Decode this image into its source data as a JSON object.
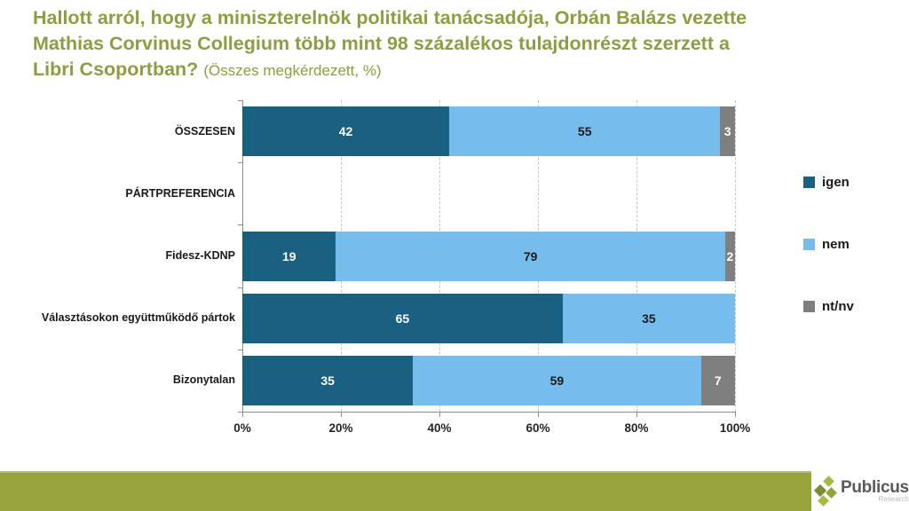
{
  "title": {
    "lines": [
      "Hallott arról, hogy a miniszterelnök politikai tanácsadója, Orbán Balázs vezette",
      "Mathias Corvinus Collegium több mint 98 százalékos tulajdonrészt szerzett a",
      "Libri Csoportban?"
    ],
    "suffix": "(Összes megkérdezett, %)",
    "color": "#8e9d41"
  },
  "chart_data": {
    "type": "bar",
    "orientation": "horizontal-stacked",
    "title": "Hallott arról, hogy a miniszterelnök politikai tanácsadója, Orbán Balázs vezette Mathias Corvinus Collegium több mint 98 százalékos tulajdonrészt szerzett a Libri Csoportban? (Összes megkérdezett, %)",
    "categories": [
      "ÖSSZESEN",
      "PÁRTPREFERENCIA",
      "Fidesz-KDNP",
      "Választásokon együttműködő pártok",
      "Bizonytalan"
    ],
    "series": [
      {
        "name": "igen",
        "color": "#1a6181",
        "label_color": "#ffffff",
        "values": [
          42,
          null,
          19,
          65,
          35
        ]
      },
      {
        "name": "nem",
        "color": "#76bdee",
        "label_color": "#1a1a1a",
        "values": [
          55,
          null,
          79,
          35,
          59
        ]
      },
      {
        "name": "nt/nv",
        "color": "#7f7f7f",
        "label_color": "#ffffff",
        "values": [
          3,
          null,
          2,
          0,
          7
        ]
      }
    ],
    "x_ticks": [
      "0%",
      "20%",
      "40%",
      "60%",
      "80%",
      "100%"
    ],
    "xlim": [
      0,
      100
    ],
    "grid": "dashed-vertical-at-20-40-60-80-100",
    "legend_position": "right"
  },
  "footer": {
    "band_color": "#98a43c",
    "brand": "Publicus",
    "brand_sub": "Research"
  }
}
